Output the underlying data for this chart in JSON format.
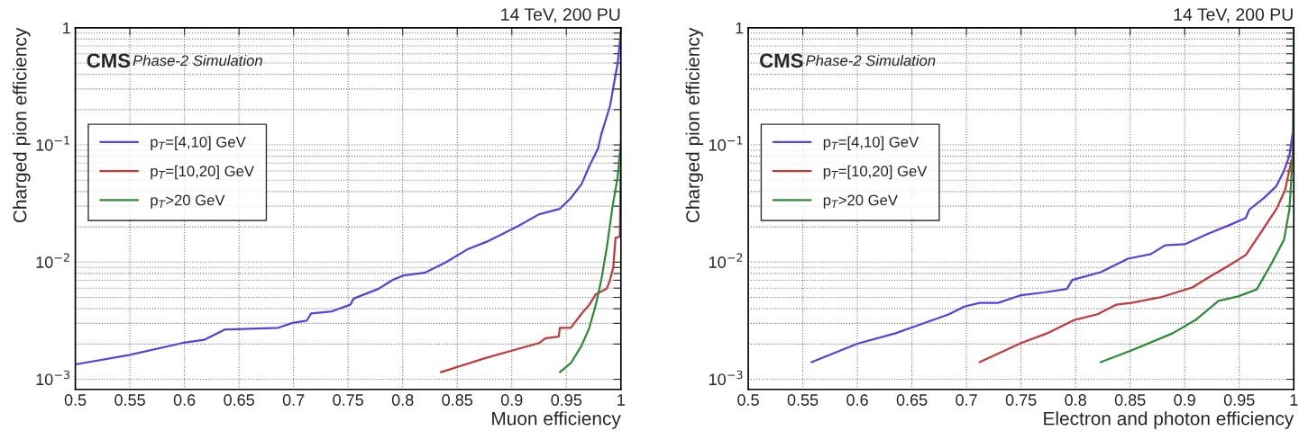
{
  "chart_data": [
    {
      "type": "line",
      "xlabel": "Muon efficiency",
      "ylabel": "Charged pion efficiency",
      "annotations": [
        "14 TeV, 200 PU",
        "CMS",
        "Phase-2 Simulation"
      ],
      "log": "y",
      "grid": true,
      "legend": "left",
      "line_style": "solid",
      "xlim": [
        0.5,
        1
      ],
      "xticks": [
        0.5,
        0.55,
        0.6,
        0.65,
        0.7,
        0.75,
        0.8,
        0.85,
        0.9,
        0.95,
        1
      ],
      "ylim": [
        0.00082,
        1
      ],
      "yticks": [
        {
          "value": 0.001,
          "label": "10$^{−3}$"
        },
        {
          "value": 0.002,
          "label": null
        },
        {
          "value": 0.003,
          "label": null
        },
        {
          "value": 0.004,
          "label": null
        },
        {
          "value": 0.005,
          "label": null
        },
        {
          "value": 0.006,
          "label": null
        },
        {
          "value": 0.007,
          "label": null
        },
        {
          "value": 0.008,
          "label": null
        },
        {
          "value": 0.009,
          "label": null
        },
        {
          "value": 0.01,
          "label": "10$^{−2}$"
        },
        {
          "value": 0.02,
          "label": null
        },
        {
          "value": 0.03,
          "label": null
        },
        {
          "value": 0.04,
          "label": null
        },
        {
          "value": 0.05,
          "label": null
        },
        {
          "value": 0.06,
          "label": null
        },
        {
          "value": 0.07,
          "label": null
        },
        {
          "value": 0.08,
          "label": null
        },
        {
          "value": 0.09,
          "label": null
        },
        {
          "value": 0.1,
          "label": "10$^{−1}$"
        },
        {
          "value": 0.2,
          "label": null
        },
        {
          "value": 0.3,
          "label": null
        },
        {
          "value": 0.4,
          "label": null
        },
        {
          "value": 0.5,
          "label": null
        },
        {
          "value": 0.6,
          "label": null
        },
        {
          "value": 0.7,
          "label": null
        },
        {
          "value": 0.8,
          "label": null
        },
        {
          "value": 0.9,
          "label": null
        },
        1
      ],
      "series": [
        {
          "name": "p$_{T}$=[4,10] GeV",
          "color": "#5a3fe0",
          "x": [
            0.5,
            0.549,
            0.598,
            0.618,
            0.637,
            0.686,
            0.699,
            0.712,
            0.716,
            0.735,
            0.752,
            0.755,
            0.778,
            0.791,
            0.801,
            0.82,
            0.84,
            0.859,
            0.879,
            0.905,
            0.925,
            0.944,
            0.954,
            0.964,
            0.971,
            0.979,
            0.982,
            0.99,
            0.997,
            1.0
          ],
          "values": [
            0.00134,
            0.00161,
            0.00204,
            0.00217,
            0.00266,
            0.00275,
            0.00303,
            0.00316,
            0.00364,
            0.0038,
            0.00433,
            0.00488,
            0.00593,
            0.00705,
            0.0077,
            0.00811,
            0.01,
            0.0128,
            0.0152,
            0.0201,
            0.0256,
            0.0285,
            0.0351,
            0.0465,
            0.0658,
            0.0933,
            0.123,
            0.215,
            0.498,
            0.93
          ]
        },
        {
          "name": "p$_{T}$=[10,20] GeV",
          "color": "#c0393b",
          "x": [
            0.835,
            0.876,
            0.905,
            0.925,
            0.931,
            0.943,
            0.944,
            0.954,
            0.964,
            0.971,
            0.977,
            0.987,
            0.99,
            0.993,
            0.995,
            0.999,
            1.0
          ],
          "values": [
            0.00115,
            0.00152,
            0.00181,
            0.00204,
            0.00224,
            0.00231,
            0.00275,
            0.00275,
            0.00364,
            0.00433,
            0.00533,
            0.00593,
            0.00705,
            0.00901,
            0.0161,
            0.0165,
            0.08
          ]
        },
        {
          "name": "p$_{T}$>20 GeV",
          "color": "#2e8b3a",
          "x": [
            0.944,
            0.954,
            0.964,
            0.971,
            0.977,
            0.982,
            0.987,
            0.992,
            0.997,
            1.0,
            1.0
          ],
          "values": [
            0.00115,
            0.00137,
            0.00194,
            0.00275,
            0.00433,
            0.00705,
            0.0132,
            0.0285,
            0.0533,
            0.107,
            0.93
          ]
        }
      ]
    },
    {
      "type": "line",
      "xlabel": "Electron and photon efficiency",
      "ylabel": "Charged pion efficiency",
      "annotations": [
        "14 TeV, 200 PU",
        "CMS",
        "Phase-2 Simulation"
      ],
      "log": "y",
      "grid": true,
      "legend": "left",
      "line_style": "solid",
      "xlim": [
        0.5,
        1
      ],
      "xticks": [
        0.5,
        0.55,
        0.6,
        0.65,
        0.7,
        0.75,
        0.8,
        0.85,
        0.9,
        0.95,
        1
      ],
      "ylim": [
        0.00082,
        1
      ],
      "yticks": [
        {
          "value": 0.001,
          "label": "10$^{−3}$"
        },
        {
          "value": 0.002,
          "label": null
        },
        {
          "value": 0.003,
          "label": null
        },
        {
          "value": 0.004,
          "label": null
        },
        {
          "value": 0.005,
          "label": null
        },
        {
          "value": 0.006,
          "label": null
        },
        {
          "value": 0.007,
          "label": null
        },
        {
          "value": 0.008,
          "label": null
        },
        {
          "value": 0.009,
          "label": null
        },
        {
          "value": 0.01,
          "label": "10$^{−2}$"
        },
        {
          "value": 0.02,
          "label": null
        },
        {
          "value": 0.03,
          "label": null
        },
        {
          "value": 0.04,
          "label": null
        },
        {
          "value": 0.05,
          "label": null
        },
        {
          "value": 0.06,
          "label": null
        },
        {
          "value": 0.07,
          "label": null
        },
        {
          "value": 0.08,
          "label": null
        },
        {
          "value": 0.09,
          "label": null
        },
        {
          "value": 0.1,
          "label": "10$^{−1}$"
        },
        {
          "value": 0.2,
          "label": null
        },
        {
          "value": 0.3,
          "label": null
        },
        {
          "value": 0.4,
          "label": null
        },
        {
          "value": 0.5,
          "label": null
        },
        {
          "value": 0.6,
          "label": null
        },
        {
          "value": 0.7,
          "label": null
        },
        {
          "value": 0.8,
          "label": null
        },
        {
          "value": 0.9,
          "label": null
        },
        1
      ],
      "series": [
        {
          "name": "p$_{T}$=[4,10] GeV",
          "color": "#5a3fe0",
          "x": [
            0.558,
            0.6,
            0.635,
            0.684,
            0.698,
            0.712,
            0.729,
            0.75,
            0.771,
            0.792,
            0.797,
            0.823,
            0.848,
            0.869,
            0.882,
            0.9,
            0.921,
            0.942,
            0.956,
            0.959,
            0.973,
            0.984,
            0.991,
            0.996,
            0.999
          ],
          "values": [
            0.0014,
            0.00201,
            0.00247,
            0.00359,
            0.00417,
            0.00449,
            0.00449,
            0.00522,
            0.00551,
            0.0059,
            0.00705,
            0.0082,
            0.0107,
            0.0117,
            0.0139,
            0.0142,
            0.0174,
            0.0209,
            0.0238,
            0.0279,
            0.0355,
            0.0445,
            0.06,
            0.081,
            0.127
          ]
        },
        {
          "name": "p$_{T}$=[10,20] GeV",
          "color": "#c0393b",
          "x": [
            0.712,
            0.75,
            0.774,
            0.799,
            0.82,
            0.837,
            0.851,
            0.879,
            0.907,
            0.924,
            0.942,
            0.956,
            0.97,
            0.984,
            0.992,
            0.998
          ],
          "values": [
            0.0014,
            0.00204,
            0.00247,
            0.00321,
            0.00359,
            0.00433,
            0.00449,
            0.00504,
            0.00607,
            0.0076,
            0.00953,
            0.0115,
            0.018,
            0.0283,
            0.0412,
            0.075
          ]
        },
        {
          "name": "p$_{T}$>20 GeV",
          "color": "#2e8b3a",
          "x": [
            0.823,
            0.851,
            0.889,
            0.91,
            0.931,
            0.949,
            0.966,
            0.98,
            0.991,
            0.996,
            0.999,
            1.0
          ],
          "values": [
            0.0014,
            0.00176,
            0.00247,
            0.00321,
            0.00467,
            0.0051,
            0.00585,
            0.0099,
            0.0155,
            0.0283,
            0.081,
            0.95
          ]
        }
      ]
    }
  ]
}
